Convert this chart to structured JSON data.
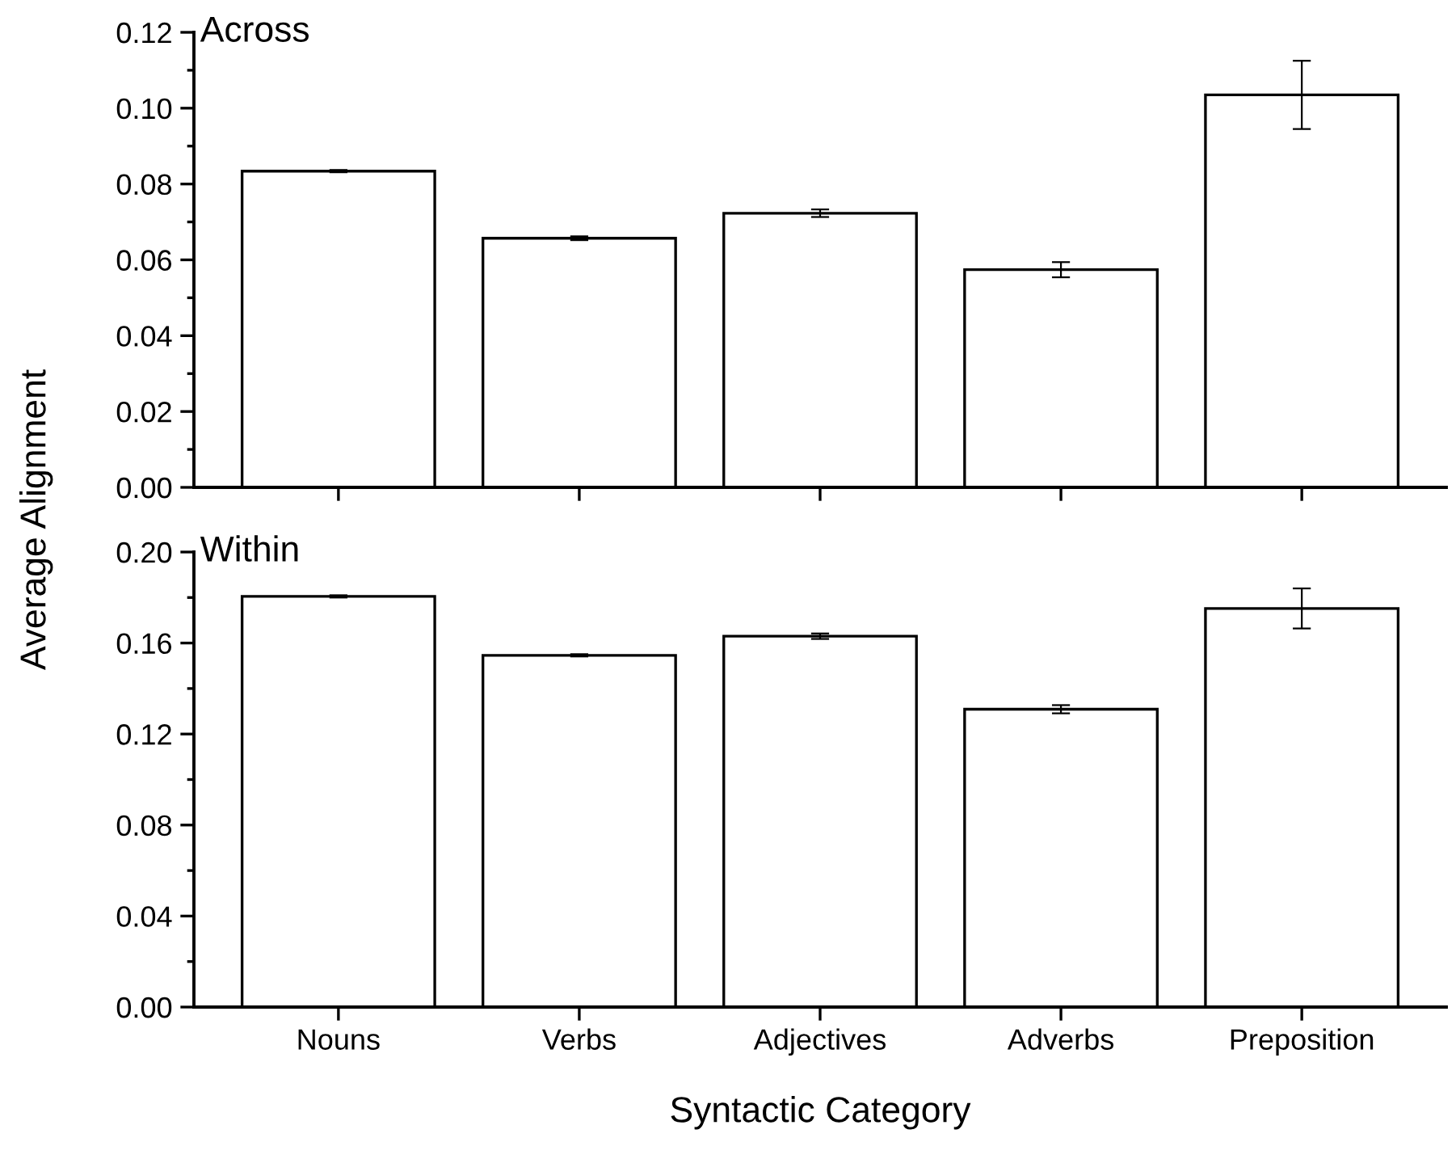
{
  "chart_data": [
    {
      "type": "bar",
      "annotations": [
        "Across"
      ],
      "ylabel": "Average Alignment",
      "categories": [
        null,
        null,
        null,
        null,
        null
      ],
      "tick_labels": "y",
      "series": [
        {
          "color": "#ffffff",
          "values": [
            0.0834,
            0.0657,
            0.0723,
            0.0574,
            0.1035
          ],
          "errors": [
            0.0003,
            0.0005,
            0.001,
            0.002,
            0.009
          ]
        }
      ],
      "ylim": [
        0,
        0.12
      ],
      "yticks": [
        {
          "value": 0,
          "label": "0.00"
        },
        {
          "value": 0.02,
          "label": "0.02"
        },
        {
          "value": 0.04,
          "label": "0.04"
        },
        {
          "value": 0.06,
          "label": "0.06"
        },
        {
          "value": 0.08,
          "label": "0.08"
        },
        {
          "value": 0.1,
          "label": "0.10"
        },
        {
          "value": 0.12,
          "label": "0.12"
        }
      ],
      "grid": false,
      "legend": false
    },
    {
      "type": "bar",
      "annotations": [
        "Within"
      ],
      "xlabel": "Syntactic Category",
      "categories": [
        "Nouns",
        "Verbs",
        "Adjectives",
        "Adverbs",
        "Preposition"
      ],
      "series": [
        {
          "color": "#ffffff",
          "values": [
            0.1805,
            0.1546,
            0.163,
            0.1309,
            0.1752
          ],
          "errors": [
            0.0005,
            0.0005,
            0.0012,
            0.0018,
            0.0088
          ]
        }
      ],
      "ylim": [
        0,
        0.2
      ],
      "yticks": [
        {
          "value": 0,
          "label": "0.00"
        },
        {
          "value": 0.04,
          "label": "0.04"
        },
        {
          "value": 0.08,
          "label": "0.08"
        },
        {
          "value": 0.12,
          "label": "0.12"
        },
        {
          "value": 0.16,
          "label": "0.16"
        },
        {
          "value": 0.2,
          "label": "0.20"
        }
      ],
      "grid": false,
      "legend": false
    }
  ]
}
